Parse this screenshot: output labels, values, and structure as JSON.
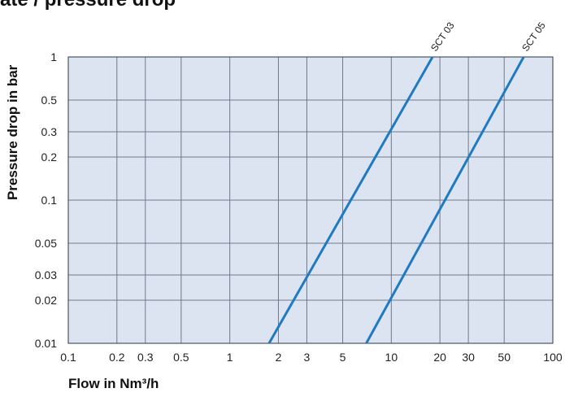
{
  "title": "ate / pressure drop",
  "chart_data": {
    "type": "line",
    "xlabel": "Flow in Nm³/h",
    "ylabel": "Pressure drop in bar",
    "x_scale": "log",
    "y_scale": "log",
    "xlim": [
      0.1,
      100
    ],
    "ylim": [
      0.01,
      1
    ],
    "x_ticks": [
      {
        "value": 0.1,
        "label": "0.1"
      },
      {
        "value": 0.2,
        "label": "0.2"
      },
      {
        "value": 0.3,
        "label": "0.3"
      },
      {
        "value": 0.5,
        "label": "0.5"
      },
      {
        "value": 1,
        "label": "1"
      },
      {
        "value": 2,
        "label": "2"
      },
      {
        "value": 3,
        "label": "3"
      },
      {
        "value": 5,
        "label": "5"
      },
      {
        "value": 10,
        "label": "10"
      },
      {
        "value": 20,
        "label": "20"
      },
      {
        "value": 30,
        "label": "30"
      },
      {
        "value": 50,
        "label": "50"
      },
      {
        "value": 100,
        "label": "100"
      }
    ],
    "y_ticks": [
      {
        "value": 0.01,
        "label": "0.01"
      },
      {
        "value": 0.02,
        "label": "0.02"
      },
      {
        "value": 0.03,
        "label": "0.03"
      },
      {
        "value": 0.05,
        "label": "0.05"
      },
      {
        "value": 0.1,
        "label": "0.1"
      },
      {
        "value": 0.2,
        "label": "0.2"
      },
      {
        "value": 0.3,
        "label": "0.3"
      },
      {
        "value": 0.5,
        "label": "0.5"
      },
      {
        "value": 1,
        "label": "1"
      }
    ],
    "grid": true,
    "series": [
      {
        "name": "SCT 03",
        "color": "#1f7bc1",
        "x": [
          1.75,
          18
        ],
        "y": [
          0.01,
          1
        ]
      },
      {
        "name": "SCT 05",
        "color": "#1f7bc1",
        "x": [
          7.0,
          66
        ],
        "y": [
          0.01,
          1
        ]
      }
    ]
  }
}
